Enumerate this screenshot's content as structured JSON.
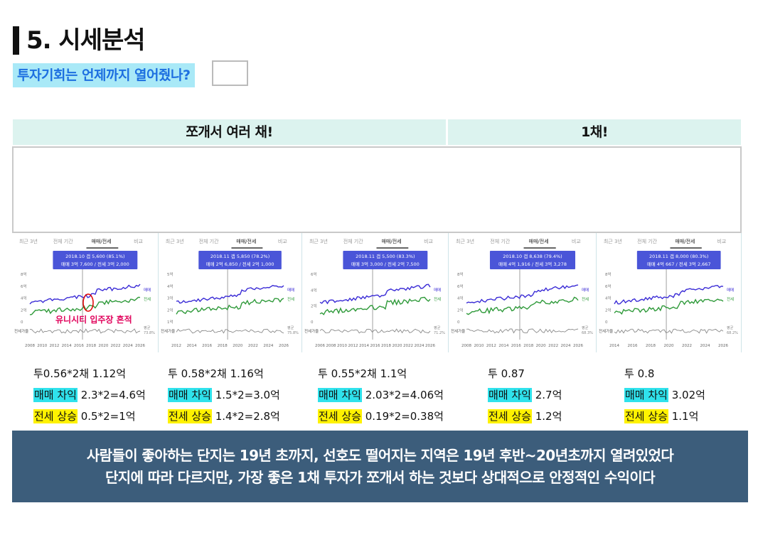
{
  "title": "5. 시세분석",
  "question": "투자기회는 언제까지 열어줬나?",
  "headers": {
    "left": "쪼개서 여러 채!",
    "right": "1채!"
  },
  "chart_tabs": [
    "최근 3년",
    "전체 기간",
    "매매/전세",
    "비교"
  ],
  "charts": [
    {
      "tooltip_line1": "2018.10  갭 5,600 (85.1%)",
      "tooltip_line2": "매매 3억 7,600 / 전세 3억 2,000",
      "annotation": "유니시티 입주장 흔적",
      "years": [
        "2008",
        "2010",
        "2012",
        "2014",
        "2016",
        "2018",
        "2020",
        "2022",
        "2024",
        "2026"
      ],
      "y_ticks": [
        "8억",
        "6억",
        "4억",
        "2억",
        "0"
      ],
      "legend": [
        "매매",
        "전세"
      ],
      "bottom_label": "전세가율",
      "bottom_right": "평균\n73.8%"
    },
    {
      "tooltip_line1": "2018.11  갭 5,850 (78.2%)",
      "tooltip_line2": "매매 2억 6,850 / 전세 2억 1,000",
      "years": [
        "2012",
        "2014",
        "2016",
        "2018",
        "2020",
        "2022",
        "2024",
        "2026"
      ],
      "y_ticks": [
        "5억",
        "4억",
        "3억",
        "2억",
        "1억"
      ],
      "legend": [
        "매매",
        "전세"
      ],
      "bottom_label": "전세가율",
      "bottom_right": "평균\n75.8%"
    },
    {
      "tooltip_line1": "2018.11  갭 5,500 (83.3%)",
      "tooltip_line2": "매매 3억 3,000 / 전세 2억 7,500",
      "years": [
        "2006",
        "2008",
        "2010",
        "2012",
        "2014",
        "2016",
        "2018",
        "2020",
        "2022",
        "2024",
        "2026"
      ],
      "y_ticks": [
        "6억",
        "4억",
        "2억",
        "0"
      ],
      "legend": [
        "매매",
        "전세"
      ],
      "bottom_label": "전세가율",
      "bottom_right": "평균\n71.2%"
    },
    {
      "tooltip_line1": "2018.10  갭 8,638 (79.4%)",
      "tooltip_line2": "매매 4억 1,916 / 전세 3억 3,278",
      "years": [
        "2008",
        "2010",
        "2012",
        "2014",
        "2016",
        "2018",
        "2020",
        "2022",
        "2024",
        "2026"
      ],
      "y_ticks": [
        "8억",
        "6억",
        "4억",
        "2억",
        "0"
      ],
      "legend": [
        "매매",
        "전세"
      ],
      "bottom_label": "전세가율",
      "bottom_right": "평균\n68.3%"
    },
    {
      "tooltip_line1": "2018.11  갭 8,000 (80.3%)",
      "tooltip_line2": "매매 4억 667 / 전세 3억 2,667",
      "years": [
        "2014",
        "2016",
        "2018",
        "2020",
        "2022",
        "2024",
        "2026"
      ],
      "y_ticks": [
        "8억",
        "6억",
        "4억",
        "2억",
        "0"
      ],
      "legend": [
        "매매",
        "전세"
      ],
      "bottom_label": "전세가율",
      "bottom_right": "평균\n68.2%"
    }
  ],
  "columns": [
    {
      "invest": "투0.56*2채 1.12억",
      "trade_label": "매매 차익",
      "trade_value": " 2.3*2=4.6억",
      "jeonse_label": "전세 상승",
      "jeonse_value": " 0.5*2=1억"
    },
    {
      "invest": "투 0.58*2채 1.16억",
      "trade_label": "매매 차익",
      "trade_value": " 1.5*2=3.0억",
      "jeonse_label": "전세 상승",
      "jeonse_value": " 1.4*2=2.8억"
    },
    {
      "invest": "투 0.55*2채 1.1억",
      "trade_label": "매매 차익",
      "trade_value": " 2.03*2=4.06억",
      "jeonse_label": "전세 상승",
      "jeonse_value": " 0.19*2=0.38억"
    },
    {
      "invest": "투 0.87",
      "trade_label": "매매 차익",
      "trade_value": " 2.7억",
      "jeonse_label": "전세 상승",
      "jeonse_value": " 1.2억"
    },
    {
      "invest": "투 0.8",
      "trade_label": "매매 차익",
      "trade_value": " 3.02억",
      "jeonse_label": "전세 상승",
      "jeonse_value": " 1.1억"
    }
  ],
  "conclusion_line1": "사람들이 좋아하는 단지는 19년 초까지, 선호도 떨어지는 지역은 19년 후반~20년초까지 열려있었다",
  "conclusion_line2": "단지에 따라 다르지만, 가장 좋은 1채 투자가 쪼개서 하는 것보다 상대적으로 안정적인 수익이다",
  "colors": {
    "trade_line": "#3a2bd6",
    "jeonse_line": "#2f9a3a",
    "ratio_line": "#8a8a8a",
    "tooltip_bg": "#4a55d8",
    "annotation": "#e0005a"
  }
}
